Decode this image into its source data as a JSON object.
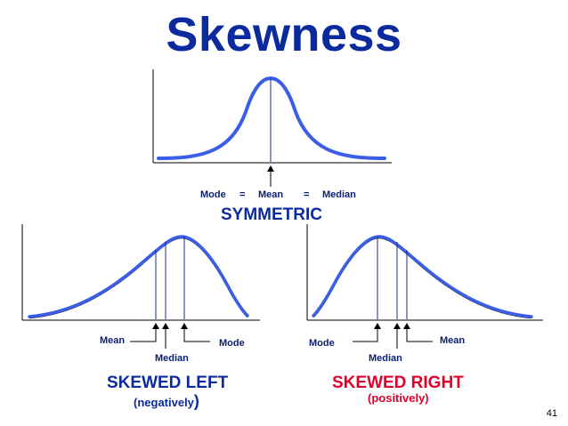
{
  "title": "Skewness",
  "symmetric": {
    "labels": {
      "mode": "Mode",
      "eq1": "=",
      "mean": "Mean",
      "eq2": "=",
      "median": "Median"
    },
    "caption": "SYMMETRIC"
  },
  "skewed_left": {
    "labels": {
      "mean": "Mean",
      "median": "Median",
      "mode": "Mode"
    },
    "caption": "SKEWED LEFT",
    "subcaption_open": "(negatively",
    "subcaption_close": ")"
  },
  "skewed_right": {
    "labels": {
      "mode": "Mode",
      "median": "Median",
      "mean": "Mean"
    },
    "caption": "SKEWED RIGHT",
    "subcaption": "(positively)"
  },
  "page_number": "41",
  "colors": {
    "title": "#0b2a9e",
    "curve": "#3b5ee8",
    "curve_shadow": "#111111",
    "marker_line": "#1a2f8a",
    "caption_blue": "#0b2a9e",
    "caption_red": "#e0002a"
  }
}
